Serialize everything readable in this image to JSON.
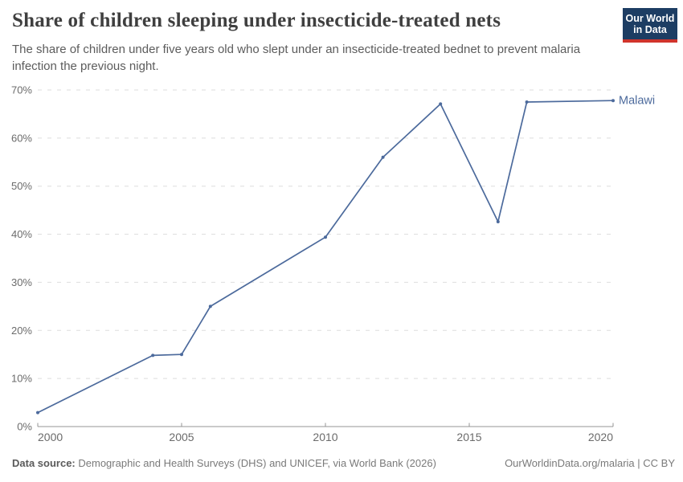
{
  "header": {
    "title": "Share of children sleeping under insecticide-treated nets",
    "subtitle": "The share of children under five years old who slept under an insecticide-treated bednet to prevent malaria infection the previous night.",
    "logo": {
      "line1": "Our World",
      "line2": "in Data"
    }
  },
  "chart_data": {
    "type": "line",
    "title": "Share of children sleeping under insecticide-treated nets",
    "xlabel": "",
    "ylabel": "",
    "xlim": [
      2000,
      2020
    ],
    "ylim": [
      0,
      70
    ],
    "x_ticks": [
      2000,
      2005,
      2010,
      2015,
      2020
    ],
    "y_ticks": [
      0,
      10,
      20,
      30,
      40,
      50,
      60,
      70
    ],
    "y_suffix": "%",
    "grid": "horizontal dashed",
    "legend": "end-of-line entity label",
    "series": [
      {
        "name": "Malawi",
        "color": "#4c6a9c",
        "points": [
          [
            2000,
            2.9
          ],
          [
            2004,
            14.8
          ],
          [
            2005,
            15
          ],
          [
            2006,
            25
          ],
          [
            2010,
            39.4
          ],
          [
            2012,
            56
          ],
          [
            2014,
            67.1
          ],
          [
            2016,
            42.6
          ],
          [
            2017,
            67.5
          ],
          [
            2020,
            67.8
          ]
        ]
      }
    ]
  },
  "colors": {
    "line": "#4c6a9c",
    "grid": "#dddddd",
    "axis": "#949494",
    "tick_text": "#6b6b6b",
    "logo_bg": "#1d3d63",
    "logo_accent": "#d0342c"
  },
  "footer": {
    "source_label": "Data source:",
    "source_text": "Demographic and Health Surveys (DHS) and UNICEF, via World Bank (2026)",
    "attribution": "OurWorldinData.org/malaria | CC BY"
  }
}
